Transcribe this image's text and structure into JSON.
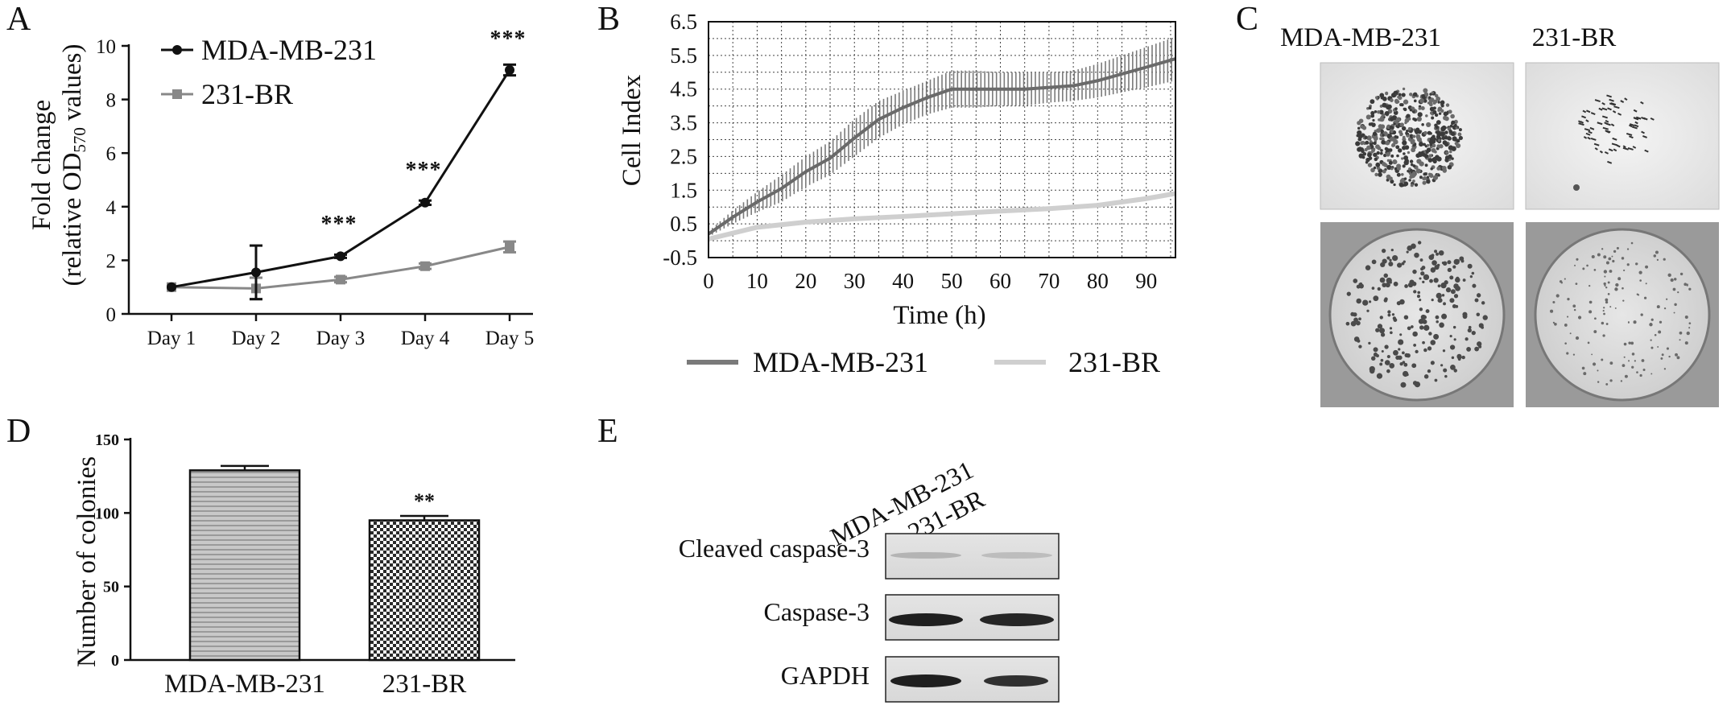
{
  "panel_letters": {
    "a": "A",
    "b": "B",
    "c": "C",
    "d": "D",
    "e": "E"
  },
  "colors": {
    "series1": "#111111",
    "series2": "#888888",
    "band1": "#7a7a7a",
    "line2": "#cfcfcf",
    "grid": "#333333"
  },
  "chart_data": [
    {
      "id": "A",
      "type": "line",
      "categories": [
        "Day 1",
        "Day 2",
        "Day 3",
        "Day 4",
        "Day 5"
      ],
      "ylabel_line1": "Fold change",
      "ylabel_line2_pre": "(relative OD",
      "ylabel_sub": "570",
      "ylabel_line2_post": " values)",
      "ylim": [
        0,
        10
      ],
      "yticks": [
        0,
        2,
        4,
        6,
        8,
        10
      ],
      "series": [
        {
          "name": "MDA-MB-231",
          "values": [
            1.0,
            1.55,
            2.15,
            4.15,
            9.1
          ],
          "errors": [
            0,
            1.0,
            0.06,
            0.08,
            0.2
          ],
          "marker": "circle"
        },
        {
          "name": "231-BR",
          "values": [
            1.0,
            0.95,
            1.28,
            1.78,
            2.5
          ],
          "errors": [
            0,
            0.4,
            0.1,
            0.1,
            0.2
          ],
          "marker": "square"
        }
      ],
      "annotations": [
        {
          "category": "Day 3",
          "text": "***",
          "y": 3.4
        },
        {
          "category": "Day 4",
          "text": "***",
          "y": 5.4
        },
        {
          "category": "Day 5",
          "text": "***",
          "y": 10.3
        }
      ],
      "legend": "top-left"
    },
    {
      "id": "B",
      "type": "line",
      "xlabel": "Time (h)",
      "ylabel": "Cell Index",
      "xlim": [
        0,
        96
      ],
      "xticks": [
        0,
        10,
        20,
        30,
        40,
        50,
        60,
        70,
        80,
        90
      ],
      "ylim": [
        -0.5,
        6.5
      ],
      "yticks": [
        -0.5,
        0.5,
        1.5,
        2.5,
        3.5,
        4.5,
        5.5,
        6.5
      ],
      "grid": true,
      "series": [
        {
          "name": "MDA-MB-231",
          "x": [
            0,
            5,
            10,
            15,
            20,
            25,
            30,
            35,
            40,
            45,
            50,
            55,
            60,
            65,
            70,
            75,
            80,
            85,
            90,
            96
          ],
          "values": [
            0.2,
            0.7,
            1.15,
            1.55,
            2.05,
            2.45,
            3.05,
            3.6,
            3.95,
            4.25,
            4.5,
            4.5,
            4.5,
            4.5,
            4.55,
            4.6,
            4.75,
            4.95,
            5.15,
            5.4
          ],
          "spread": [
            0.08,
            0.2,
            0.3,
            0.4,
            0.45,
            0.5,
            0.55,
            0.55,
            0.5,
            0.5,
            0.55,
            0.55,
            0.5,
            0.5,
            0.45,
            0.45,
            0.5,
            0.55,
            0.6,
            0.65
          ]
        },
        {
          "name": "231-BR",
          "x": [
            0,
            10,
            20,
            30,
            40,
            50,
            60,
            70,
            80,
            90,
            96
          ],
          "values": [
            0.05,
            0.4,
            0.55,
            0.65,
            0.72,
            0.8,
            0.88,
            0.95,
            1.05,
            1.25,
            1.4
          ]
        }
      ],
      "legend": "bottom"
    },
    {
      "id": "D",
      "type": "bar",
      "categories": [
        "MDA-MB-231",
        "231-BR"
      ],
      "values": [
        129,
        95
      ],
      "errors": [
        3,
        3
      ],
      "ylabel": "Number of colonies",
      "ylim": [
        0,
        150
      ],
      "yticks": [
        0,
        50,
        100,
        150
      ],
      "annotations": [
        {
          "category": "231-BR",
          "text": "**"
        }
      ]
    }
  ],
  "panelC": {
    "headers": [
      "MDA-MB-231",
      "231-BR"
    ]
  },
  "panelE": {
    "lanes": [
      "MDA-MB-231",
      "231-BR"
    ],
    "rows": [
      "Cleaved caspase-3",
      "Caspase-3",
      "GAPDH"
    ]
  }
}
